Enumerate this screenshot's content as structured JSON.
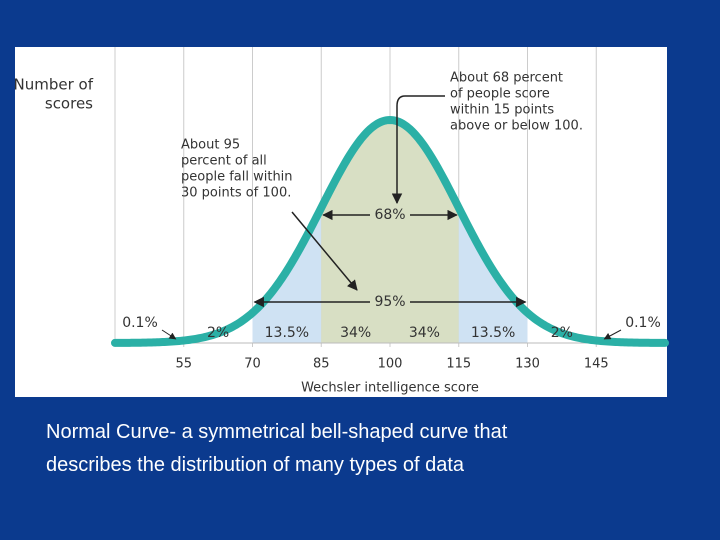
{
  "chart_data": {
    "type": "normal-curve",
    "y_label": [
      "Number of",
      "scores"
    ],
    "x_label": "Wechsler intelligence score",
    "xlim": [
      40,
      160
    ],
    "xticks": [
      55,
      70,
      85,
      100,
      115,
      130,
      145
    ],
    "grid": true,
    "curve_color": "#2bb0a6",
    "segments": {
      "values": [
        0.1,
        2,
        13.5,
        34,
        34,
        13.5,
        2,
        0.1
      ],
      "value_labels": [
        "0.1%",
        "2%",
        "13.5%",
        "34%",
        "34%",
        "13.5%",
        "2%",
        "0.1%"
      ],
      "colors": [
        "#ffffff",
        "#ffffff",
        "#cfe2f3",
        "#d8dfc4",
        "#d8dfc4",
        "#cfe2f3",
        "#ffffff",
        "#ffffff"
      ]
    },
    "brackets": [
      {
        "value": 68,
        "label": "68%",
        "from": 85,
        "to": 115
      },
      {
        "value": 95,
        "label": "95%",
        "from": 70,
        "to": 130
      }
    ],
    "annotations": [
      [
        "About 95",
        "percent of all",
        "people fall within",
        "30 points of 100."
      ],
      [
        "About 68 percent",
        "of people score",
        "within 15 points",
        "above or below 100."
      ]
    ]
  },
  "caption": [
    "Normal Curve- a symmetrical bell-shaped curve that",
    "describes the distribution of many types of data"
  ]
}
